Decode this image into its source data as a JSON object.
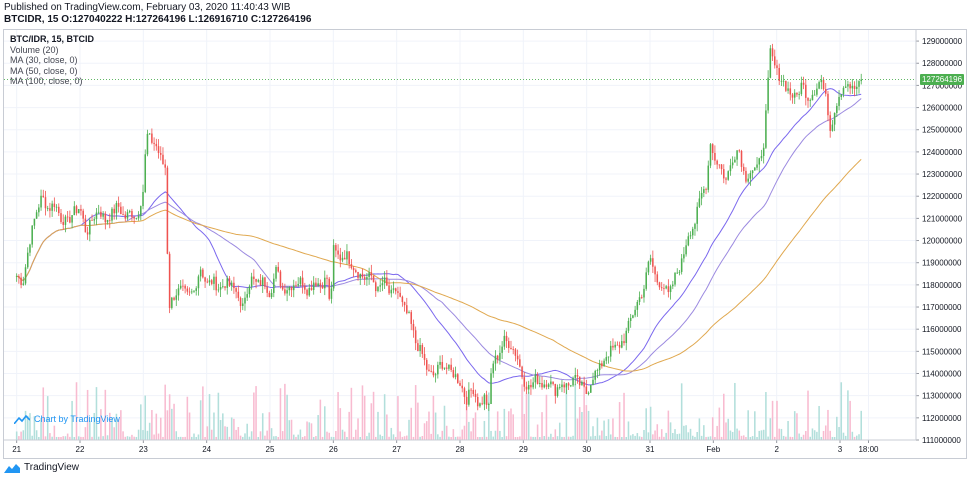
{
  "header": {
    "published": "Published on TradingView.com, February 03, 2020 11:40:43 WIB",
    "ohlc": "BTCIDR, 15 O:127040222 H:127264196 L:126916710 C:127264196"
  },
  "legend": {
    "symbol": "BTC/IDR, 15, BTCID",
    "items": [
      "Volume (20)",
      "MA (30, close, 0)",
      "MA (50, close, 0)",
      "MA (100, close, 0)"
    ]
  },
  "watermark": "Chart by TradingView",
  "footer": "TradingView",
  "price_tag": "127264196",
  "colors": {
    "up": "#26a69a",
    "up_candle": "#4caf50",
    "down": "#ef5350",
    "ma30": "#7b68ee",
    "ma50": "#9c8ae0",
    "ma100": "#e0a84f",
    "volume_up": "#b2dfdb",
    "volume_down": "#f8bbd0",
    "grid": "#f0f3fa",
    "last_price_line": "#4caf50"
  },
  "chart_data": {
    "type": "candlestick",
    "symbol": "BTC/IDR",
    "interval": "15",
    "y_axis": {
      "ticks": [
        "129000000",
        "128000000",
        "127000000",
        "126000000",
        "125000000",
        "124000000",
        "123000000",
        "122000000",
        "121000000",
        "120000000",
        "119000000",
        "118000000",
        "117000000",
        "116000000",
        "115000000",
        "114000000",
        "113000000",
        "112000000",
        "111000000"
      ],
      "range": [
        111000000,
        129500000
      ],
      "position": "right"
    },
    "x_axis": {
      "ticks": [
        "21",
        "22",
        "23",
        "24",
        "25",
        "26",
        "27",
        "28",
        "29",
        "30",
        "31",
        "Feb",
        "2",
        "3",
        "18:00"
      ],
      "tick_days": [
        0,
        1,
        2,
        3,
        4,
        5,
        6,
        7,
        8,
        9,
        10,
        11,
        12,
        13,
        13.45
      ],
      "range_days": [
        -0.2,
        14.2
      ]
    },
    "last_price": 127264196,
    "close_path": [
      [
        0.0,
        118400000
      ],
      [
        0.1,
        118100000
      ],
      [
        0.2,
        119900000
      ],
      [
        0.3,
        121200000
      ],
      [
        0.4,
        122000000
      ],
      [
        0.5,
        121400000
      ],
      [
        0.6,
        121700000
      ],
      [
        0.7,
        121000000
      ],
      [
        0.8,
        120800000
      ],
      [
        0.9,
        121300000
      ],
      [
        1.0,
        121500000
      ],
      [
        1.1,
        120300000
      ],
      [
        1.2,
        121000000
      ],
      [
        1.3,
        121400000
      ],
      [
        1.4,
        120900000
      ],
      [
        1.5,
        121200000
      ],
      [
        1.6,
        121600000
      ],
      [
        1.7,
        121000000
      ],
      [
        1.8,
        121300000
      ],
      [
        1.9,
        121000000
      ],
      [
        2.0,
        122300000
      ],
      [
        2.05,
        124800000
      ],
      [
        2.1,
        124600000
      ],
      [
        2.2,
        124300000
      ],
      [
        2.3,
        123500000
      ],
      [
        2.35,
        123300000
      ],
      [
        2.4,
        117000000
      ],
      [
        2.5,
        117600000
      ],
      [
        2.6,
        117800000
      ],
      [
        2.7,
        117500000
      ],
      [
        2.8,
        117700000
      ],
      [
        2.9,
        118800000
      ],
      [
        3.0,
        118000000
      ],
      [
        3.1,
        118200000
      ],
      [
        3.2,
        117800000
      ],
      [
        3.3,
        118100000
      ],
      [
        3.4,
        117900000
      ],
      [
        3.5,
        117600000
      ],
      [
        3.55,
        116600000
      ],
      [
        3.6,
        117500000
      ],
      [
        3.7,
        118300000
      ],
      [
        3.8,
        118000000
      ],
      [
        3.9,
        118200000
      ],
      [
        4.0,
        117600000
      ],
      [
        4.1,
        118700000
      ],
      [
        4.2,
        117800000
      ],
      [
        4.3,
        117900000
      ],
      [
        4.4,
        118100000
      ],
      [
        4.5,
        118200000
      ],
      [
        4.6,
        117700000
      ],
      [
        4.7,
        118200000
      ],
      [
        4.8,
        118000000
      ],
      [
        4.9,
        118300000
      ],
      [
        4.95,
        116800000
      ],
      [
        5.0,
        119600000
      ],
      [
        5.1,
        119200000
      ],
      [
        5.2,
        119400000
      ],
      [
        5.3,
        118900000
      ],
      [
        5.4,
        118500000
      ],
      [
        5.5,
        118300000
      ],
      [
        5.6,
        118400000
      ],
      [
        5.7,
        117700000
      ],
      [
        5.8,
        118200000
      ],
      [
        5.9,
        117500000
      ],
      [
        6.0,
        117800000
      ],
      [
        6.1,
        117000000
      ],
      [
        6.2,
        116500000
      ],
      [
        6.3,
        115400000
      ],
      [
        6.4,
        114900000
      ],
      [
        6.5,
        114000000
      ],
      [
        6.6,
        113900000
      ],
      [
        6.7,
        114500000
      ],
      [
        6.8,
        114200000
      ],
      [
        6.9,
        114000000
      ],
      [
        7.0,
        113600000
      ],
      [
        7.1,
        112800000
      ],
      [
        7.2,
        113400000
      ],
      [
        7.3,
        112500000
      ],
      [
        7.4,
        113000000
      ],
      [
        7.45,
        112200000
      ],
      [
        7.5,
        114400000
      ],
      [
        7.6,
        114800000
      ],
      [
        7.7,
        115500000
      ],
      [
        7.8,
        115300000
      ],
      [
        7.9,
        114800000
      ],
      [
        8.0,
        113700000
      ],
      [
        8.1,
        113300000
      ],
      [
        8.2,
        113800000
      ],
      [
        8.3,
        113500000
      ],
      [
        8.4,
        113700000
      ],
      [
        8.5,
        113200000
      ],
      [
        8.6,
        113600000
      ],
      [
        8.7,
        113400000
      ],
      [
        8.8,
        113800000
      ],
      [
        8.9,
        113500000
      ],
      [
        9.0,
        113100000
      ],
      [
        9.1,
        113900000
      ],
      [
        9.2,
        114200000
      ],
      [
        9.3,
        114800000
      ],
      [
        9.4,
        115100000
      ],
      [
        9.5,
        115200000
      ],
      [
        9.6,
        115600000
      ],
      [
        9.7,
        116500000
      ],
      [
        9.8,
        117200000
      ],
      [
        9.9,
        117800000
      ],
      [
        10.0,
        119300000
      ],
      [
        10.1,
        118200000
      ],
      [
        10.2,
        118000000
      ],
      [
        10.3,
        117500000
      ],
      [
        10.4,
        118400000
      ],
      [
        10.5,
        119000000
      ],
      [
        10.6,
        120300000
      ],
      [
        10.7,
        120700000
      ],
      [
        10.8,
        122000000
      ],
      [
        10.9,
        122600000
      ],
      [
        10.95,
        124600000
      ],
      [
        11.0,
        123800000
      ],
      [
        11.1,
        123400000
      ],
      [
        11.2,
        122700000
      ],
      [
        11.3,
        123700000
      ],
      [
        11.4,
        124200000
      ],
      [
        11.5,
        122800000
      ],
      [
        11.6,
        123200000
      ],
      [
        11.7,
        123200000
      ],
      [
        11.8,
        124500000
      ],
      [
        11.9,
        128500000
      ],
      [
        12.0,
        127600000
      ],
      [
        12.1,
        127200000
      ],
      [
        12.2,
        126700000
      ],
      [
        12.3,
        126400000
      ],
      [
        12.4,
        127100000
      ],
      [
        12.5,
        126400000
      ],
      [
        12.6,
        126800000
      ],
      [
        12.7,
        127300000
      ],
      [
        12.8,
        126100000
      ],
      [
        12.85,
        124900000
      ],
      [
        12.9,
        125800000
      ],
      [
        13.0,
        126700000
      ],
      [
        13.1,
        127200000
      ],
      [
        13.2,
        126800000
      ],
      [
        13.3,
        127000000
      ],
      [
        13.35,
        127264196
      ]
    ],
    "moving_averages": [
      {
        "name": "MA (30, close, 0)",
        "period": 30
      },
      {
        "name": "MA (50, close, 0)",
        "period": 50
      },
      {
        "name": "MA (100, close, 0)",
        "period": 100
      }
    ]
  }
}
